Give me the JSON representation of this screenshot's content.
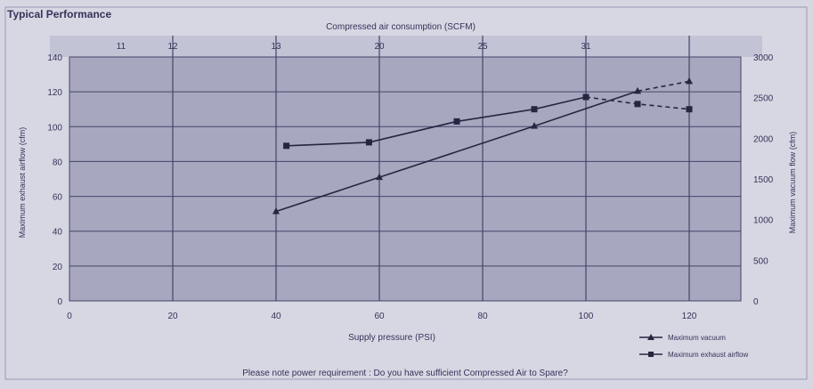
{
  "chart_data": {
    "type": "line",
    "title": "Typical Performance",
    "xlabel": "Supply pressure (PSI)",
    "xlim": [
      0,
      130
    ],
    "x_ticks": [
      "0",
      "20",
      "40",
      "60",
      "80",
      "100",
      "120"
    ],
    "top_axis": {
      "label": "Compressed air consumption (SCFM)",
      "ticks": [
        "11",
        "12",
        "13",
        "20",
        "25",
        "31"
      ]
    },
    "ylabel": "Maximum exhaust airflow (cfm)",
    "ylim": [
      0,
      140
    ],
    "y_ticks": [
      "0",
      "20",
      "40",
      "60",
      "80",
      "100",
      "120",
      "140"
    ],
    "ylabel_right": "Maximum vacuum flow (cfm)",
    "ylim_right": [
      0,
      3000
    ],
    "y_ticks_right": [
      "0",
      "500",
      "1000",
      "1500",
      "2000",
      "2500",
      "3000"
    ],
    "series": [
      {
        "name": "Maximum vacuum",
        "marker": "triangle",
        "axis": "right",
        "x": [
          40,
          60,
          90,
          110,
          120
        ],
        "values": [
          1100,
          1520,
          2150,
          2580,
          2700
        ]
      },
      {
        "name": "Maximum exhaust airflow",
        "marker": "square",
        "axis": "left",
        "x": [
          42,
          58,
          75,
          90,
          100,
          110,
          120
        ],
        "values": [
          89,
          91,
          103,
          110,
          117,
          113,
          110
        ]
      }
    ],
    "grid": true,
    "legend_position": "bottom-right",
    "footnote": "Please note power requirement : Do you have sufficient Compressed Air to Spare?",
    "colors": {
      "background": "#d7d7e3",
      "plot_area": "#a7a7bf",
      "grid_line": "#44446a",
      "series_line": "#262640",
      "text": "#33335a"
    }
  }
}
